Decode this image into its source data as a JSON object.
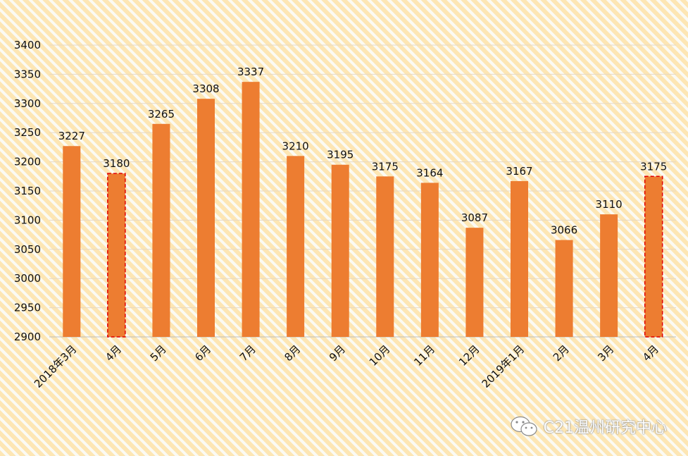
{
  "colors": {
    "bar": "#ed7d31",
    "highlight_border": "#e00000",
    "grid": "#e7d8c2",
    "axis": "#bdbdbd"
  },
  "watermark": {
    "text": "C21温州研究中心",
    "icon": "wechat-icon"
  },
  "chart_data": {
    "type": "bar",
    "title": "",
    "xlabel": "",
    "ylabel": "",
    "categories": [
      "2018年3月",
      "4月",
      "5月",
      "6月",
      "7月",
      "8月",
      "9月",
      "10月",
      "11月",
      "12月",
      "2019年1月",
      "2月",
      "3月",
      "4月"
    ],
    "values": [
      3227,
      3180,
      3265,
      3308,
      3337,
      3210,
      3195,
      3175,
      3164,
      3087,
      3167,
      3066,
      3110,
      3175
    ],
    "highlighted": [
      1,
      13
    ],
    "ylim": [
      2900,
      3400
    ],
    "yticks": [
      2900,
      2950,
      3000,
      3050,
      3100,
      3150,
      3200,
      3250,
      3300,
      3350,
      3400
    ],
    "grid": true,
    "legend": "none",
    "data_labels": true
  }
}
